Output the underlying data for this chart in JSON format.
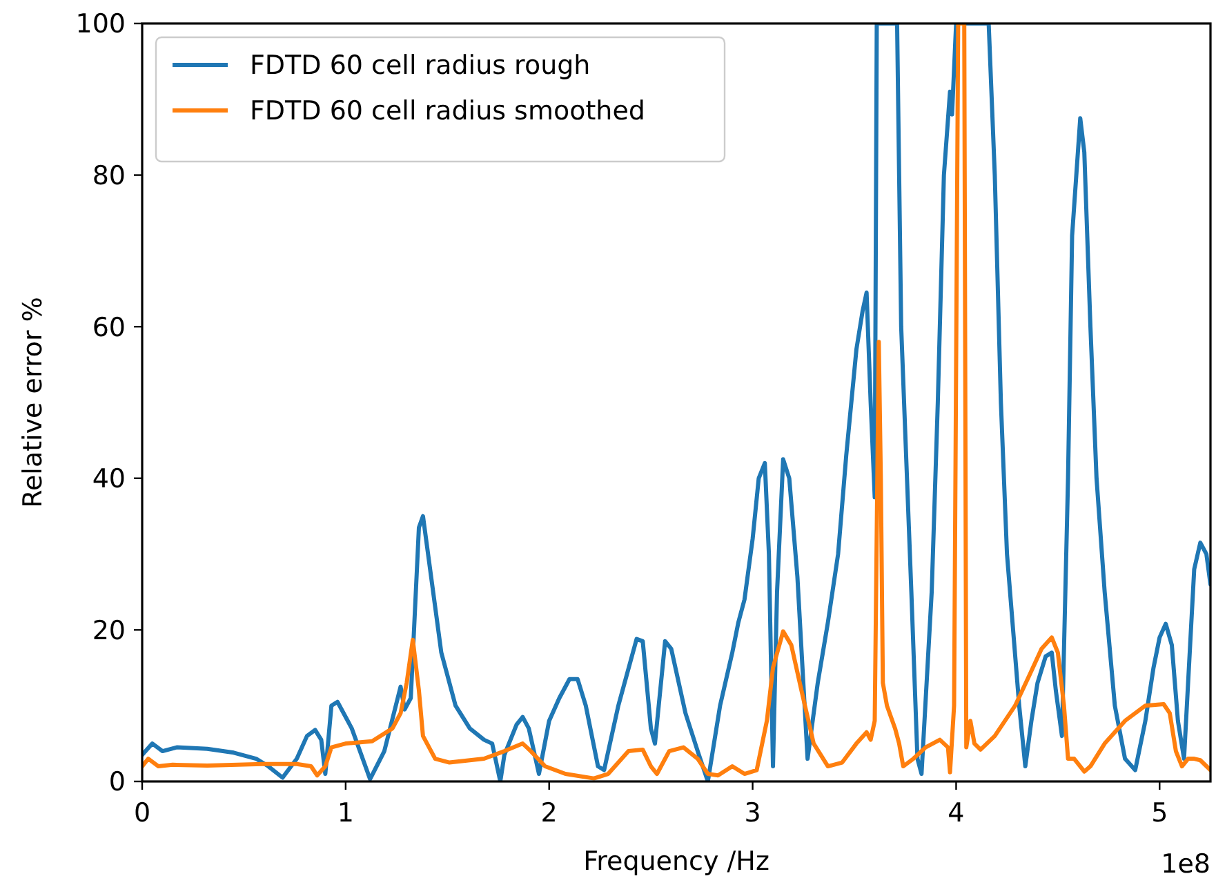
{
  "chart_data": {
    "type": "line",
    "xlabel": "Frequency /Hz",
    "ylabel": "Relative error %",
    "annotations": [
      "1e8"
    ],
    "xlim": [
      0,
      5.25
    ],
    "xticks": [
      0,
      1,
      2,
      3,
      4,
      5
    ],
    "ylim": [
      0,
      100
    ],
    "yticks": [
      0,
      20,
      40,
      60,
      80,
      100
    ],
    "grid": false,
    "legend": "top left",
    "line_style": "solid",
    "series": [
      {
        "name": "FDTD 60 cell radius rough",
        "color": "#1f77b4",
        "x": [
          0,
          0.05,
          0.1,
          0.17,
          0.32,
          0.45,
          0.56,
          0.62,
          0.69,
          0.76,
          0.81,
          0.85,
          0.88,
          0.9,
          0.93,
          0.96,
          1.03,
          1.12,
          1.19,
          1.27,
          1.29,
          1.32,
          1.36,
          1.38,
          1.44,
          1.47,
          1.54,
          1.61,
          1.68,
          1.72,
          1.76,
          1.78,
          1.84,
          1.87,
          1.9,
          1.95,
          2,
          2.05,
          2.1,
          2.14,
          2.18,
          2.24,
          2.27,
          2.34,
          2.43,
          2.46,
          2.5,
          2.52,
          2.57,
          2.6,
          2.67,
          2.73,
          2.78,
          2.84,
          2.9,
          2.93,
          2.96,
          3,
          3.03,
          3.06,
          3.08,
          3.1,
          3.12,
          3.15,
          3.18,
          3.22,
          3.27,
          3.32,
          3.37,
          3.42,
          3.46,
          3.51,
          3.54,
          3.56,
          3.58,
          3.6,
          3.61,
          3.71,
          3.73,
          3.78,
          3.81,
          3.83,
          3.88,
          3.91,
          3.94,
          3.97,
          3.98,
          4,
          4.16,
          4.19,
          4.22,
          4.25,
          4.31,
          4.34,
          4.37,
          4.4,
          4.44,
          4.47,
          4.49,
          4.52,
          4.55,
          4.57,
          4.61,
          4.63,
          4.66,
          4.69,
          4.73,
          4.78,
          4.83,
          4.88,
          4.93,
          4.97,
          5,
          5.03,
          5.06,
          5.09,
          5.12,
          5.15,
          5.17,
          5.2,
          5.23,
          5.25
        ],
        "values": [
          3.5,
          5,
          4,
          4.5,
          4.3,
          3.8,
          3,
          2,
          0.5,
          3,
          6,
          6.8,
          5.5,
          1,
          10,
          10.5,
          7,
          0.3,
          4,
          12.5,
          9.5,
          11,
          33.5,
          35,
          23,
          17,
          10,
          7,
          5.5,
          5,
          0,
          3.5,
          7.5,
          8.5,
          7,
          1,
          8,
          11,
          13.5,
          13.5,
          10,
          2,
          1.5,
          10,
          18.8,
          18.5,
          7,
          5,
          18.5,
          17.5,
          9,
          4,
          0,
          10,
          17,
          21,
          24,
          32,
          40,
          42,
          30,
          2,
          25,
          42.5,
          40,
          27,
          3,
          13,
          21,
          30,
          43,
          57,
          62,
          64.5,
          50,
          37.5,
          100,
          100,
          60,
          25,
          3,
          1,
          25,
          50,
          80,
          91,
          88,
          100,
          100,
          80,
          50,
          30,
          10,
          2,
          8,
          13,
          16.5,
          17,
          12,
          6,
          40,
          72,
          87.5,
          83,
          60,
          40,
          25,
          10,
          3,
          1.5,
          8,
          15,
          19,
          20.8,
          18,
          8,
          3,
          18,
          28,
          31.5,
          30,
          26
        ]
      },
      {
        "name": "FDTD 60 cell radius smoothed",
        "color": "#ff7f0e",
        "x": [
          0,
          0.03,
          0.08,
          0.15,
          0.32,
          0.59,
          0.76,
          0.83,
          0.86,
          0.9,
          0.93,
          1,
          1.13,
          1.23,
          1.27,
          1.3,
          1.33,
          1.36,
          1.38,
          1.44,
          1.51,
          1.68,
          1.78,
          1.87,
          1.91,
          1.98,
          2.08,
          2.22,
          2.29,
          2.39,
          2.46,
          2.5,
          2.53,
          2.59,
          2.66,
          2.73,
          2.78,
          2.83,
          2.9,
          2.96,
          3.02,
          3.07,
          3.1,
          3.15,
          3.19,
          3.24,
          3.3,
          3.37,
          3.44,
          3.51,
          3.56,
          3.58,
          3.6,
          3.62,
          3.63,
          3.64,
          3.66,
          3.7,
          3.72,
          3.74,
          3.79,
          3.85,
          3.92,
          3.96,
          3.97,
          3.99,
          4.01,
          4.04,
          4.05,
          4.07,
          4.09,
          4.12,
          4.19,
          4.29,
          4.36,
          4.42,
          4.47,
          4.5,
          4.53,
          4.55,
          4.58,
          4.63,
          4.66,
          4.73,
          4.83,
          4.93,
          5.02,
          5.05,
          5.08,
          5.11,
          5.14,
          5.17,
          5.2,
          5.25
        ],
        "values": [
          2,
          3,
          2,
          2.2,
          2.1,
          2.3,
          2.3,
          2,
          0.8,
          2,
          4.5,
          5,
          5.3,
          7,
          9,
          13,
          18.7,
          12,
          6,
          3,
          2.5,
          3,
          4,
          5,
          4,
          2,
          1,
          0.4,
          1,
          4,
          4.2,
          2,
          1,
          4,
          4.5,
          3,
          1,
          0.8,
          2,
          1,
          1.5,
          8,
          15,
          19.8,
          18,
          12,
          5,
          2,
          2.5,
          5,
          6.5,
          5.5,
          8,
          58,
          40,
          13,
          10,
          7,
          5,
          2,
          3,
          4.5,
          5.5,
          4.5,
          1.2,
          10,
          100,
          100,
          4.5,
          8,
          5,
          4.2,
          6,
          10,
          14,
          17.5,
          19,
          17,
          10,
          3,
          3,
          1.3,
          2,
          5,
          8,
          10,
          10.2,
          9,
          4,
          2,
          3,
          3,
          2.8,
          1.5
        ]
      }
    ]
  }
}
